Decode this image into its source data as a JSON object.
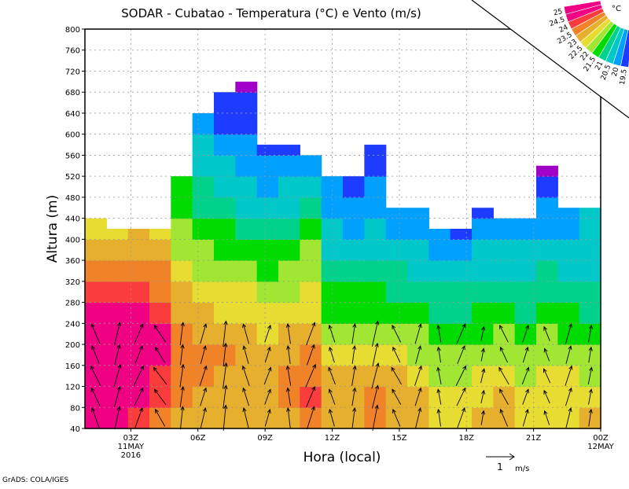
{
  "chart_data": {
    "type": "heatmap",
    "title": "SODAR - Cubatao - Temperatura (°C) e Vento (m/s)",
    "xlabel": "Hora (local)",
    "ylabel": "Altura (m)",
    "ylim": [
      40,
      800
    ],
    "yticks": [
      40,
      80,
      120,
      160,
      200,
      240,
      280,
      320,
      360,
      400,
      440,
      480,
      520,
      560,
      600,
      640,
      680,
      720,
      760,
      800
    ],
    "xlim_hours": [
      1,
      24
    ],
    "xticks": [
      {
        "hour": 3,
        "label": "03Z",
        "sub1": "11MAY",
        "sub2": "2016"
      },
      {
        "hour": 6,
        "label": "06Z"
      },
      {
        "hour": 9,
        "label": "09Z"
      },
      {
        "hour": 12,
        "label": "12Z"
      },
      {
        "hour": 15,
        "label": "15Z"
      },
      {
        "hour": 18,
        "label": "18Z"
      },
      {
        "hour": 21,
        "label": "21Z"
      },
      {
        "hour": 24,
        "label": "00Z",
        "sub1": "12MAY"
      }
    ],
    "grid": true,
    "band_m": 40,
    "base_m": 40,
    "hours": [
      1,
      2,
      3,
      4,
      5,
      6,
      7,
      8,
      9,
      10,
      11,
      12,
      13,
      14,
      15,
      16,
      17,
      18,
      19,
      20,
      21,
      22,
      23,
      24
    ],
    "top_m": [
      440,
      420,
      420,
      420,
      520,
      640,
      680,
      700,
      580,
      580,
      560,
      520,
      520,
      580,
      460,
      460,
      420,
      420,
      460,
      440,
      440,
      540,
      460,
      460
    ],
    "temperature": [
      [
        24.8,
        25.5,
        25.5,
        25.4,
        25.2,
        24.7,
        24.3,
        23.8,
        23.3,
        22.8
      ],
      [
        24.7,
        25.1,
        25.3,
        25.2,
        25.0,
        24.6,
        24.2,
        23.7,
        23.3,
        22.9
      ],
      [
        24.3,
        24.6,
        24.9,
        25.1,
        24.9,
        24.6,
        24.2,
        23.7,
        23.3,
        23.1
      ],
      [
        23.8,
        24.2,
        24.4,
        24.6,
        24.5,
        24.2,
        23.8,
        23.5,
        23.1,
        22.9
      ],
      [
        23.4,
        23.6,
        23.8,
        23.9,
        23.7,
        23.3,
        23.0,
        22.7,
        22.4,
        22.1,
        21.8,
        21.6
      ],
      [
        23.2,
        23.4,
        23.5,
        23.6,
        23.4,
        23.0,
        22.7,
        22.3,
        22.0,
        21.6,
        21.3,
        21.0,
        20.7,
        20.5,
        20.3
      ],
      [
        23.0,
        23.1,
        23.3,
        23.5,
        23.2,
        22.9,
        22.6,
        22.3,
        21.9,
        21.5,
        21.1,
        20.8,
        20.5,
        20.2,
        19.8,
        19.6
      ],
      [
        23.0,
        23.2,
        23.4,
        23.4,
        23.2,
        22.8,
        22.5,
        22.1,
        21.7,
        21.3,
        20.9,
        20.6,
        20.3,
        20.1,
        19.8,
        19.6,
        19.3
      ],
      [
        23.1,
        23.3,
        23.4,
        23.2,
        22.9,
        22.6,
        22.2,
        21.9,
        21.5,
        21.1,
        20.7,
        20.4,
        20.1,
        19.8
      ],
      [
        23.3,
        23.5,
        23.6,
        23.4,
        23.0,
        22.6,
        22.3,
        22.1,
        21.7,
        21.3,
        20.9,
        20.5,
        20.1,
        19.7
      ],
      [
        23.8,
        24.0,
        23.9,
        23.6,
        23.2,
        22.9,
        22.6,
        22.3,
        22.0,
        21.6,
        21.1,
        20.6,
        20.2,
        19.8
      ],
      [
        23.2,
        23.3,
        23.2,
        22.8,
        22.2,
        21.8,
        21.5,
        21.2,
        20.9,
        20.6,
        20.3,
        20.0,
        19.7
      ],
      [
        23.3,
        23.4,
        23.1,
        22.6,
        22.2,
        21.8,
        21.5,
        21.1,
        20.8,
        20.4,
        20.1,
        19.8,
        19.6
      ],
      [
        23.5,
        23.6,
        23.3,
        22.8,
        22.3,
        21.9,
        21.5,
        21.2,
        20.9,
        20.6,
        20.3,
        20.0,
        19.8,
        19.6
      ],
      [
        23.2,
        23.3,
        23.0,
        22.5,
        22.1,
        21.8,
        21.4,
        21.0,
        20.7,
        20.4,
        20.2
      ],
      [
        23.0,
        23.0,
        22.8,
        22.4,
        22.0,
        21.6,
        21.2,
        20.9,
        20.6,
        20.3,
        20.0
      ],
      [
        22.8,
        22.6,
        22.4,
        22.2,
        21.9,
        21.4,
        21.0,
        20.6,
        20.3,
        20.0
      ],
      [
        22.9,
        22.7,
        22.4,
        22.1,
        21.8,
        21.4,
        21.0,
        20.6,
        20.3,
        19.9
      ],
      [
        23.0,
        22.9,
        22.6,
        22.3,
        21.9,
        21.5,
        21.1,
        20.8,
        20.5,
        20.2,
        19.9
      ],
      [
        23.1,
        23.0,
        22.7,
        22.4,
        22.0,
        21.6,
        21.2,
        20.9,
        20.6,
        20.3
      ],
      [
        22.8,
        22.6,
        22.3,
        22.1,
        21.8,
        21.4,
        21.1,
        20.8,
        20.5,
        20.2
      ],
      [
        22.9,
        22.8,
        22.5,
        22.2,
        22.0,
        21.6,
        21.3,
        21.0,
        20.7,
        20.4,
        20.1,
        19.8,
        19.4
      ],
      [
        22.9,
        22.8,
        22.5,
        22.2,
        21.9,
        21.5,
        21.2,
        20.9,
        20.6,
        20.4,
        20.2
      ],
      [
        23.0,
        22.8,
        22.4,
        22.1,
        21.8,
        21.4,
        21.1,
        20.8,
        20.6,
        20.5,
        20.6
      ]
    ],
    "colorbar": {
      "unit": "°C",
      "levels": [
        19.5,
        20,
        20.5,
        21,
        21.5,
        22,
        22.5,
        23,
        23.5,
        24,
        24.5,
        25
      ],
      "labels": [
        "19.5",
        "20",
        "20.5",
        "21",
        "21.5",
        "22",
        "22.5",
        "23",
        "23.5",
        "24",
        "24.5",
        "25"
      ],
      "colors": [
        "#a000c8",
        "#1e3cff",
        "#00a0ff",
        "#00c8c8",
        "#00d28c",
        "#00dc00",
        "#a0e632",
        "#e6dc32",
        "#e6af2d",
        "#f08228",
        "#fa3c3c",
        "#f00082",
        "#f00082"
      ]
    },
    "wind": {
      "levels_m": [
        60,
        100,
        140,
        180,
        220
      ],
      "vectors_ms": [
        [
          -0.3,
          0.7
        ],
        [
          0.2,
          0.8
        ],
        [
          0.3,
          0.7
        ],
        [
          -0.4,
          0.6
        ],
        [
          0.1,
          0.8
        ],
        [
          0.2,
          0.7
        ],
        [
          0.1,
          0.9
        ],
        [
          -0.2,
          0.7
        ],
        [
          0.2,
          0.6
        ],
        [
          -0.1,
          0.7
        ],
        [
          0.3,
          0.8
        ],
        [
          -0.2,
          0.6
        ],
        [
          0.1,
          0.7
        ],
        [
          0.2,
          0.9
        ],
        [
          -0.3,
          0.6
        ],
        [
          0.2,
          0.7
        ],
        [
          -0.1,
          0.6
        ],
        [
          0.3,
          0.7
        ],
        [
          0.1,
          0.5
        ],
        [
          -0.3,
          0.6
        ],
        [
          0.2,
          0.6
        ],
        [
          -0.2,
          0.5
        ],
        [
          0.2,
          0.7
        ],
        [
          0.1,
          0.6
        ]
      ],
      "scale_label": "1",
      "scale_unit": "m/s"
    },
    "credit": "GrADS: COLA/IGES"
  }
}
